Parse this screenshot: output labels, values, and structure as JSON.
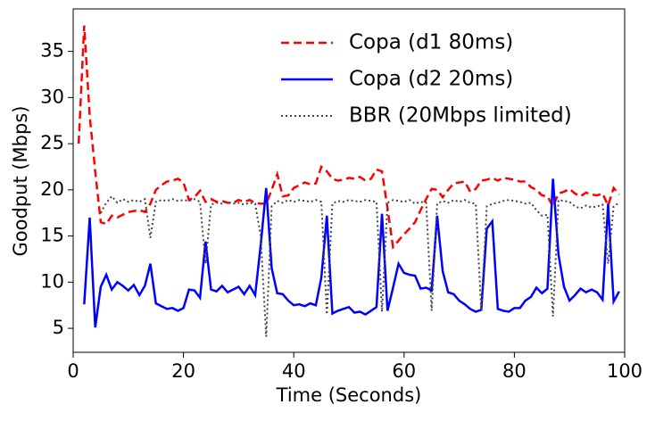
{
  "chart_data": {
    "type": "line",
    "xlabel": "Time (Seconds)",
    "ylabel": "Goodput (Mbps)",
    "x": [
      1,
      2,
      3,
      4,
      5,
      6,
      7,
      8,
      9,
      10,
      11,
      12,
      13,
      14,
      15,
      16,
      17,
      18,
      19,
      20,
      21,
      22,
      23,
      24,
      25,
      26,
      27,
      28,
      29,
      30,
      31,
      32,
      33,
      34,
      35,
      36,
      37,
      38,
      39,
      40,
      41,
      42,
      43,
      44,
      45,
      46,
      47,
      48,
      49,
      50,
      51,
      52,
      53,
      54,
      55,
      56,
      57,
      58,
      59,
      60,
      61,
      62,
      63,
      64,
      65,
      66,
      67,
      68,
      69,
      70,
      71,
      72,
      73,
      74,
      75,
      76,
      77,
      78,
      79,
      80,
      81,
      82,
      83,
      84,
      85,
      86,
      87,
      88,
      89,
      90,
      91,
      92,
      93,
      94,
      95,
      96,
      97,
      98,
      99
    ],
    "series": [
      {
        "name": "Copa (d1 80ms)",
        "color": "#ff0000",
        "style": "dashed",
        "values": [
          25,
          37.8,
          28,
          22,
          16.5,
          16.3,
          17.2,
          17,
          17.3,
          17.6,
          17.7,
          17.8,
          17.6,
          18.5,
          20,
          20.5,
          20.9,
          21,
          21.2,
          20.8,
          18.9,
          19.2,
          19.9,
          18.7,
          19,
          18.7,
          18.8,
          18.6,
          18.6,
          18.9,
          18.7,
          18.9,
          18.6,
          18.5,
          18.5,
          20,
          21.7,
          19.3,
          19.4,
          20.2,
          20.5,
          20.8,
          20.6,
          20.7,
          22.5,
          22,
          21.2,
          21,
          21.1,
          21.3,
          21.2,
          21.4,
          21,
          21.2,
          22.2,
          22,
          18,
          13.8,
          14.5,
          15.2,
          15.8,
          16.5,
          17.8,
          19,
          20.1,
          20,
          19.2,
          20,
          20.7,
          20.8,
          20.9,
          19.8,
          20.1,
          21,
          21.1,
          21.3,
          21,
          21.3,
          21.2,
          21.1,
          20.9,
          20.9,
          20.3,
          20,
          19.4,
          19.3,
          18.2,
          19.6,
          19.8,
          20.1,
          19.6,
          19.3,
          19.7,
          19.5,
          19.4,
          19.6,
          18.3,
          20.2,
          19.5
        ]
      },
      {
        "name": "Copa (d2 20ms)",
        "color": "#0000ff",
        "style": "solid",
        "values": [
          null,
          7.6,
          17,
          5.1,
          9.5,
          10.8,
          9.2,
          10,
          9.6,
          9.1,
          9.7,
          8.6,
          9.6,
          12,
          7.7,
          7.4,
          7.1,
          7.2,
          6.9,
          7.2,
          9.2,
          9.1,
          8.3,
          14.4,
          9.2,
          9,
          9.6,
          8.9,
          9.2,
          9.5,
          8.7,
          9.6,
          8.6,
          14,
          20.2,
          11.5,
          8.8,
          8.7,
          8,
          7.5,
          7.6,
          7.4,
          7.7,
          7.5,
          10.5,
          17.2,
          6.6,
          6.9,
          7.1,
          7.3,
          6.7,
          6.8,
          6.5,
          6.9,
          7.3,
          17.4,
          6.9,
          9.4,
          12,
          11,
          10.8,
          10.7,
          9.3,
          9.4,
          9.1,
          17.2,
          11.2,
          8.9,
          8.7,
          8,
          7.6,
          7.1,
          6.8,
          7,
          15.8,
          16.6,
          7.1,
          6.9,
          6.8,
          7.2,
          7.2,
          8,
          8.4,
          9.4,
          8.8,
          9.3,
          21.2,
          13,
          9.5,
          8,
          8.6,
          9.3,
          8.9,
          9.2,
          8.9,
          8.1,
          18.5,
          7.9,
          9
        ]
      },
      {
        "name": "BBR (20Mbps limited)",
        "color": "#444444",
        "style": "dotted",
        "values": [
          null,
          null,
          null,
          null,
          17.5,
          18.6,
          19.3,
          18.6,
          19,
          18.7,
          18.9,
          18.7,
          19,
          14.8,
          18.7,
          18.9,
          18.8,
          19,
          18.8,
          18.9,
          18.8,
          19,
          18.7,
          12,
          18.4,
          18.6,
          18.5,
          18.7,
          18.5,
          18.6,
          18.4,
          18.6,
          18.5,
          15,
          4.1,
          18.2,
          18.8,
          18.6,
          18.9,
          18.7,
          18.9,
          18.8,
          18.7,
          18.9,
          18.7,
          6.5,
          18.5,
          18.8,
          18.7,
          18.9,
          18.8,
          18.7,
          18.9,
          18.8,
          18.7,
          6.8,
          18.6,
          18.9,
          18.8,
          18.7,
          18.9,
          18.5,
          18.7,
          18.6,
          6.9,
          18.5,
          18.8,
          18.6,
          18.9,
          18.7,
          18.9,
          18.6,
          18.5,
          6.9,
          18.2,
          18.5,
          18.6,
          18.8,
          18.9,
          18.8,
          18.7,
          18.5,
          18.6,
          17.8,
          17.2,
          17.3,
          6.3,
          18.9,
          18.8,
          18.7,
          18.2,
          18,
          18.3,
          18.1,
          18.2,
          18.4,
          12,
          18.2,
          18.6
        ]
      }
    ],
    "xlim": [
      0,
      100
    ],
    "xticks": [
      0,
      20,
      40,
      60,
      80,
      100
    ],
    "ylim": [
      2.4,
      39.6
    ],
    "yticks": [
      5,
      10,
      15,
      20,
      25,
      30,
      35
    ],
    "grid": false,
    "legend": "upper right"
  }
}
